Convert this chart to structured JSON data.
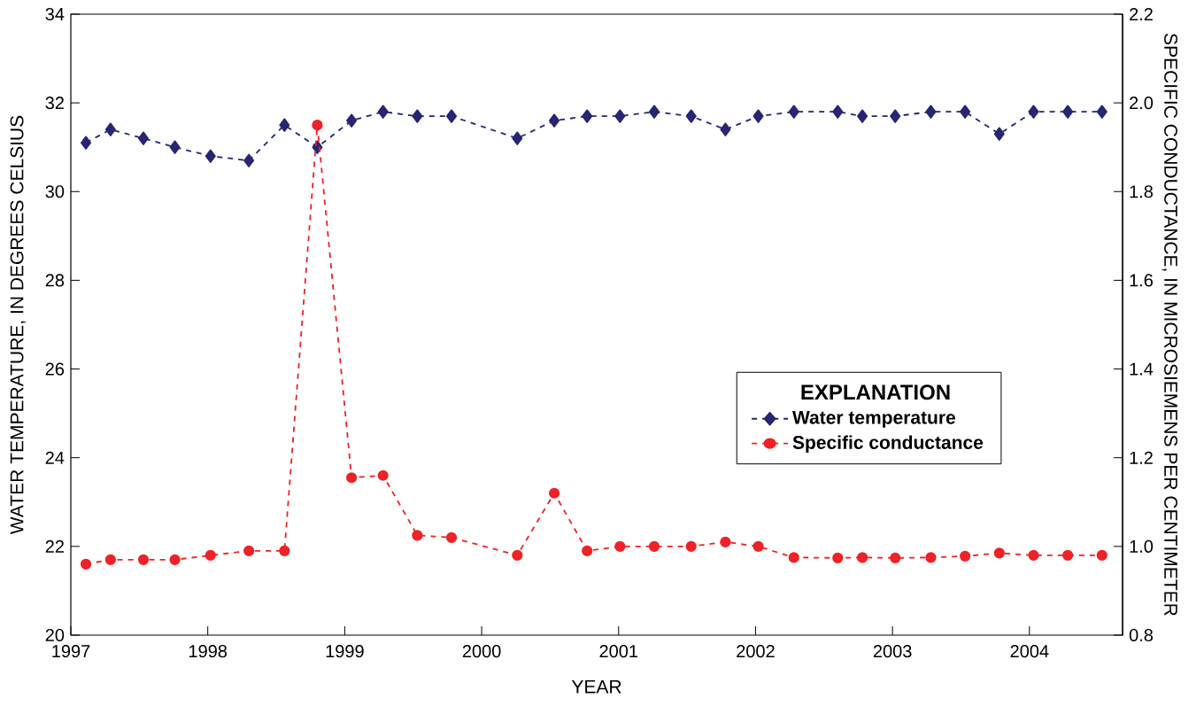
{
  "chart_data": {
    "type": "line",
    "xlabel": "YEAR",
    "ylabel": "WATER TEMPERATURE, IN DEGREES CELSIUS",
    "y2label": "SPECIFIC CONDUCTANCE, IN MICROSIEMENS PER CENTIMETER",
    "legend_title": "EXPLANATION",
    "legend": "right",
    "line_style": "dashed",
    "grid": false,
    "x": [
      1997.11,
      1997.29,
      1997.53,
      1997.76,
      1998.02,
      1998.3,
      1998.56,
      1998.8,
      1999.05,
      1999.28,
      1999.53,
      1999.78,
      2000.26,
      2000.53,
      2000.77,
      2001.01,
      2001.26,
      2001.53,
      2001.78,
      2002.02,
      2002.28,
      2002.6,
      2002.78,
      2003.02,
      2003.28,
      2003.53,
      2003.78,
      2004.03,
      2004.28,
      2004.53
    ],
    "series": [
      {
        "name": "Water temperature",
        "color": "#262673",
        "marker": "diamond",
        "axis": "y",
        "values": [
          31.1,
          31.4,
          31.2,
          31.0,
          30.8,
          30.7,
          31.5,
          31.0,
          31.6,
          31.8,
          31.7,
          31.7,
          31.2,
          31.6,
          31.7,
          31.7,
          31.8,
          31.7,
          31.4,
          31.7,
          31.8,
          31.8,
          31.7,
          31.7,
          31.8,
          31.8,
          31.3,
          31.8,
          31.8,
          31.8
        ]
      },
      {
        "name": "Specific conductance",
        "color": "#ee2227",
        "marker": "circle",
        "axis": "y2",
        "values": [
          0.96,
          0.97,
          0.97,
          0.97,
          0.98,
          0.99,
          0.99,
          1.95,
          1.155,
          1.16,
          1.025,
          1.02,
          0.98,
          1.12,
          0.99,
          1.0,
          1.0,
          1.0,
          1.01,
          1.0,
          0.975,
          0.974,
          0.975,
          0.974,
          0.975,
          0.978,
          0.985,
          0.98,
          0.98,
          0.98
        ]
      }
    ],
    "xlim": [
      1997,
      2004.68
    ],
    "xticks": [
      1997,
      1998,
      1999,
      2000,
      2001,
      2002,
      2003,
      2004
    ],
    "ylim": [
      20,
      34
    ],
    "yticks": [
      20,
      22,
      24,
      26,
      28,
      30,
      32,
      34
    ],
    "y2lim": [
      0.8,
      2.2
    ],
    "y2ticks": [
      0.8,
      {
        "value": 1.0,
        "label": "1.0"
      },
      1.2,
      1.4,
      1.6,
      1.8,
      {
        "value": 2.0,
        "label": "2.0"
      },
      2.2
    ]
  }
}
